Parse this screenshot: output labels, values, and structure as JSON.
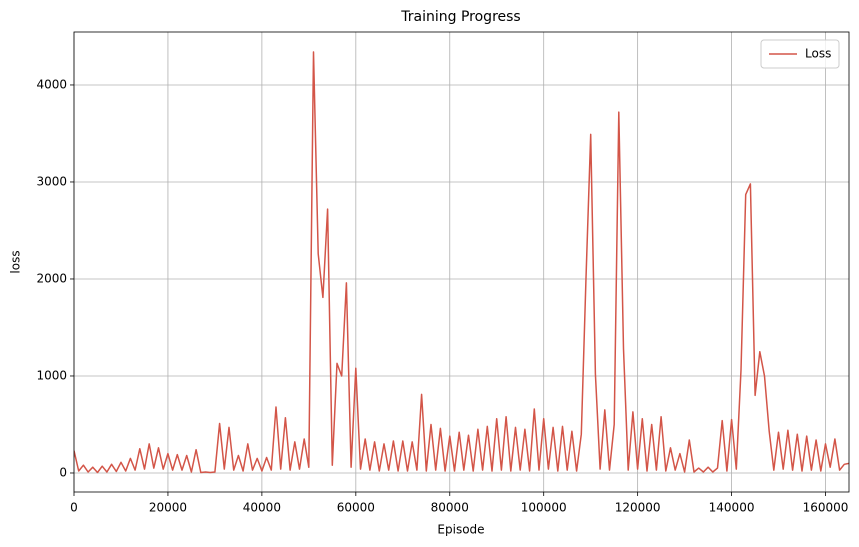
{
  "chart_data": {
    "type": "line",
    "title": "Training Progress",
    "x_label": "Episode",
    "y_label": "loss",
    "x": [
      0,
      1000,
      2000,
      3000,
      4000,
      5000,
      6000,
      7000,
      8000,
      9000,
      10000,
      11000,
      12000,
      13000,
      14000,
      15000,
      16000,
      17000,
      18000,
      19000,
      20000,
      21000,
      22000,
      23000,
      24000,
      25000,
      26000,
      27000,
      28000,
      29000,
      30000,
      31000,
      32000,
      33000,
      34000,
      35000,
      36000,
      37000,
      38000,
      39000,
      40000,
      41000,
      42000,
      43000,
      44000,
      45000,
      46000,
      47000,
      48000,
      49000,
      50000,
      51000,
      52000,
      53000,
      54000,
      55000,
      56000,
      57000,
      58000,
      59000,
      60000,
      61000,
      62000,
      63000,
      64000,
      65000,
      66000,
      67000,
      68000,
      69000,
      70000,
      71000,
      72000,
      73000,
      74000,
      75000,
      76000,
      77000,
      78000,
      79000,
      80000,
      81000,
      82000,
      83000,
      84000,
      85000,
      86000,
      87000,
      88000,
      89000,
      90000,
      91000,
      92000,
      93000,
      94000,
      95000,
      96000,
      97000,
      98000,
      99000,
      100000,
      101000,
      102000,
      103000,
      104000,
      105000,
      106000,
      107000,
      108000,
      109000,
      110000,
      111000,
      112000,
      113000,
      114000,
      115000,
      116000,
      117000,
      118000,
      119000,
      120000,
      121000,
      122000,
      123000,
      124000,
      125000,
      126000,
      127000,
      128000,
      129000,
      130000,
      131000,
      132000,
      133000,
      134000,
      135000,
      136000,
      137000,
      138000,
      139000,
      140000,
      141000,
      142000,
      143000,
      144000,
      145000,
      146000,
      147000,
      148000,
      149000,
      150000,
      151000,
      152000,
      153000,
      154000,
      155000,
      156000,
      157000,
      158000,
      159000,
      160000,
      161000,
      162000,
      163000,
      164000,
      165000
    ],
    "series": [
      {
        "name": "Loss",
        "color": "#d35548",
        "values": [
          230,
          20,
          80,
          10,
          60,
          5,
          70,
          10,
          90,
          15,
          110,
          20,
          150,
          30,
          250,
          40,
          300,
          50,
          260,
          40,
          200,
          30,
          190,
          30,
          180,
          10,
          240,
          5,
          10,
          5,
          10,
          510,
          40,
          470,
          30,
          180,
          20,
          300,
          30,
          150,
          20,
          160,
          30,
          680,
          40,
          570,
          30,
          320,
          40,
          350,
          60,
          4340,
          2260,
          1810,
          2720,
          80,
          1130,
          1000,
          1960,
          60,
          1080,
          40,
          350,
          30,
          320,
          20,
          300,
          30,
          330,
          20,
          330,
          20,
          320,
          30,
          810,
          20,
          500,
          30,
          460,
          20,
          380,
          20,
          420,
          30,
          390,
          20,
          450,
          30,
          480,
          20,
          560,
          30,
          580,
          20,
          470,
          30,
          450,
          20,
          660,
          30,
          560,
          40,
          470,
          20,
          480,
          30,
          430,
          20,
          400,
          2010,
          3490,
          1020,
          40,
          650,
          30,
          500,
          3720,
          1280,
          30,
          630,
          40,
          560,
          20,
          500,
          30,
          580,
          20,
          260,
          30,
          200,
          10,
          340,
          10,
          50,
          10,
          60,
          10,
          50,
          540,
          20,
          550,
          40,
          1060,
          2870,
          2980,
          800,
          1250,
          1000,
          430,
          30,
          420,
          40,
          440,
          30,
          400,
          20,
          380,
          30,
          340,
          20,
          300,
          60,
          350,
          30,
          90,
          100
        ]
      }
    ],
    "xlim": [
      0,
      165000
    ],
    "ylim": [
      -196,
      4546
    ],
    "xticks": [
      0,
      20000,
      40000,
      60000,
      80000,
      100000,
      120000,
      140000,
      160000
    ],
    "yticks": [
      0,
      1000,
      2000,
      3000,
      4000
    ],
    "grid": true,
    "legend": "upper right"
  }
}
